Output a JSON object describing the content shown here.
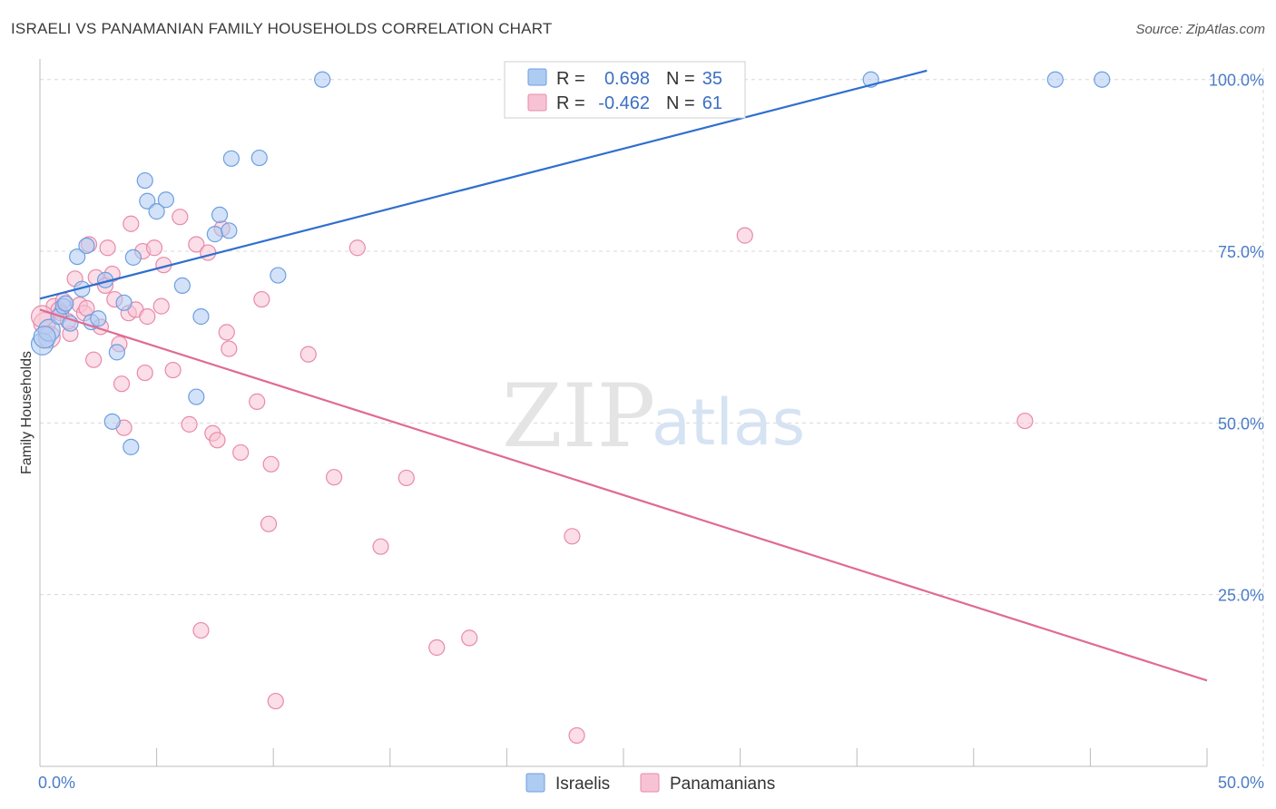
{
  "title": "ISRAELI VS PANAMANIAN FAMILY HOUSEHOLDS CORRELATION CHART",
  "source": "Source: ZipAtlas.com",
  "watermark": {
    "zip": "ZIP",
    "atlas": "atlas"
  },
  "legend_top": {
    "rows": [
      {
        "r_label": "R =",
        "r_value": "0.698",
        "n_label": "N =",
        "n_value": "35"
      },
      {
        "r_label": "R =",
        "r_value": "-0.462",
        "n_label": "N =",
        "n_value": "61"
      }
    ]
  },
  "colors": {
    "israelis_fill": "#aecbf2",
    "israelis_stroke": "#6d9fe0",
    "israelis_line": "#2f6fcf",
    "panamanians_fill": "#f7c3d4",
    "panamanians_stroke": "#e88aa9",
    "panamanians_line": "#e06a94",
    "grid": "#d8d8d8",
    "axis_tick_text": "#4a7cc8"
  },
  "chart_data": {
    "type": "scatter",
    "title": "ISRAELI VS PANAMANIAN FAMILY HOUSEHOLDS CORRELATION CHART",
    "xlabel": "",
    "ylabel": "Family Households",
    "xlim": [
      0,
      50
    ],
    "ylim": [
      0,
      103
    ],
    "x_tick_labels": [
      "0.0%",
      "50.0%"
    ],
    "y_ticks": [
      25,
      50,
      75,
      100
    ],
    "y_tick_labels": [
      "25.0%",
      "50.0%",
      "75.0%",
      "100.0%"
    ],
    "grid": true,
    "legend_position": "top-center",
    "series": [
      {
        "name": "Israelis",
        "r": 0.698,
        "n": 35,
        "trend": {
          "x": [
            0,
            38
          ],
          "y": [
            68.1,
            101.3
          ]
        },
        "points": [
          [
            0.1,
            61.5
          ],
          [
            0.4,
            63.5
          ],
          [
            0.8,
            65.5
          ],
          [
            1.0,
            67.0
          ],
          [
            1.3,
            64.5
          ],
          [
            1.6,
            74.2
          ],
          [
            1.8,
            69.5
          ],
          [
            2.0,
            75.8
          ],
          [
            2.2,
            64.7
          ],
          [
            2.8,
            70.8
          ],
          [
            3.3,
            60.3
          ],
          [
            3.6,
            67.5
          ],
          [
            3.1,
            50.2
          ],
          [
            3.9,
            46.5
          ],
          [
            4.0,
            74.1
          ],
          [
            4.5,
            85.3
          ],
          [
            4.6,
            82.3
          ],
          [
            5.0,
            80.8
          ],
          [
            5.4,
            82.5
          ],
          [
            6.1,
            70.0
          ],
          [
            6.9,
            65.5
          ],
          [
            6.7,
            53.8
          ],
          [
            7.5,
            77.5
          ],
          [
            7.7,
            80.3
          ],
          [
            8.1,
            78.0
          ],
          [
            8.2,
            88.5
          ],
          [
            9.4,
            88.6
          ],
          [
            10.2,
            71.5
          ],
          [
            12.1,
            100.0
          ],
          [
            35.6,
            100.0
          ],
          [
            43.5,
            100.0
          ],
          [
            45.5,
            100.0
          ],
          [
            0.2,
            62.5
          ],
          [
            1.1,
            67.4
          ],
          [
            2.5,
            65.2
          ]
        ]
      },
      {
        "name": "Panamanians",
        "r": -0.462,
        "n": 61,
        "trend": {
          "x": [
            0,
            50
          ],
          "y": [
            66.5,
            12.5
          ]
        },
        "points": [
          [
            0.2,
            64.5
          ],
          [
            0.4,
            62.5
          ],
          [
            0.6,
            67.0
          ],
          [
            0.8,
            66.5
          ],
          [
            1.0,
            67.8
          ],
          [
            1.3,
            63.0
          ],
          [
            1.5,
            71.0
          ],
          [
            1.7,
            67.2
          ],
          [
            1.9,
            66.0
          ],
          [
            2.1,
            76.0
          ],
          [
            2.3,
            59.2
          ],
          [
            2.4,
            71.2
          ],
          [
            2.6,
            64.0
          ],
          [
            2.8,
            70.0
          ],
          [
            2.9,
            75.5
          ],
          [
            3.1,
            71.7
          ],
          [
            3.2,
            68.0
          ],
          [
            3.4,
            61.5
          ],
          [
            3.5,
            55.7
          ],
          [
            3.6,
            49.3
          ],
          [
            3.8,
            66.0
          ],
          [
            3.9,
            79.0
          ],
          [
            4.1,
            66.5
          ],
          [
            4.4,
            75.0
          ],
          [
            4.5,
            57.3
          ],
          [
            4.6,
            65.5
          ],
          [
            4.9,
            75.5
          ],
          [
            5.2,
            67.0
          ],
          [
            5.3,
            73.0
          ],
          [
            5.7,
            57.7
          ],
          [
            6.0,
            80.0
          ],
          [
            6.4,
            49.8
          ],
          [
            6.7,
            76.0
          ],
          [
            6.9,
            19.8
          ],
          [
            7.2,
            74.8
          ],
          [
            7.4,
            48.5
          ],
          [
            7.6,
            47.5
          ],
          [
            7.8,
            78.3
          ],
          [
            8.0,
            63.2
          ],
          [
            8.1,
            60.8
          ],
          [
            8.6,
            45.7
          ],
          [
            9.3,
            53.1
          ],
          [
            9.5,
            68.0
          ],
          [
            9.8,
            35.3
          ],
          [
            9.9,
            44.0
          ],
          [
            10.1,
            9.5
          ],
          [
            11.5,
            60.0
          ],
          [
            12.6,
            42.1
          ],
          [
            13.6,
            75.5
          ],
          [
            14.6,
            32.0
          ],
          [
            15.7,
            42.0
          ],
          [
            17.0,
            17.3
          ],
          [
            18.4,
            18.7
          ],
          [
            22.8,
            33.5
          ],
          [
            23.0,
            4.5
          ],
          [
            30.2,
            77.3
          ],
          [
            42.2,
            50.3
          ],
          [
            0.9,
            66.0
          ],
          [
            1.2,
            64.8
          ],
          [
            2.0,
            66.7
          ],
          [
            0.1,
            65.5
          ]
        ]
      }
    ]
  },
  "legend_bottom": {
    "items": [
      {
        "label": "Israelis"
      },
      {
        "label": "Panamanians"
      }
    ]
  }
}
